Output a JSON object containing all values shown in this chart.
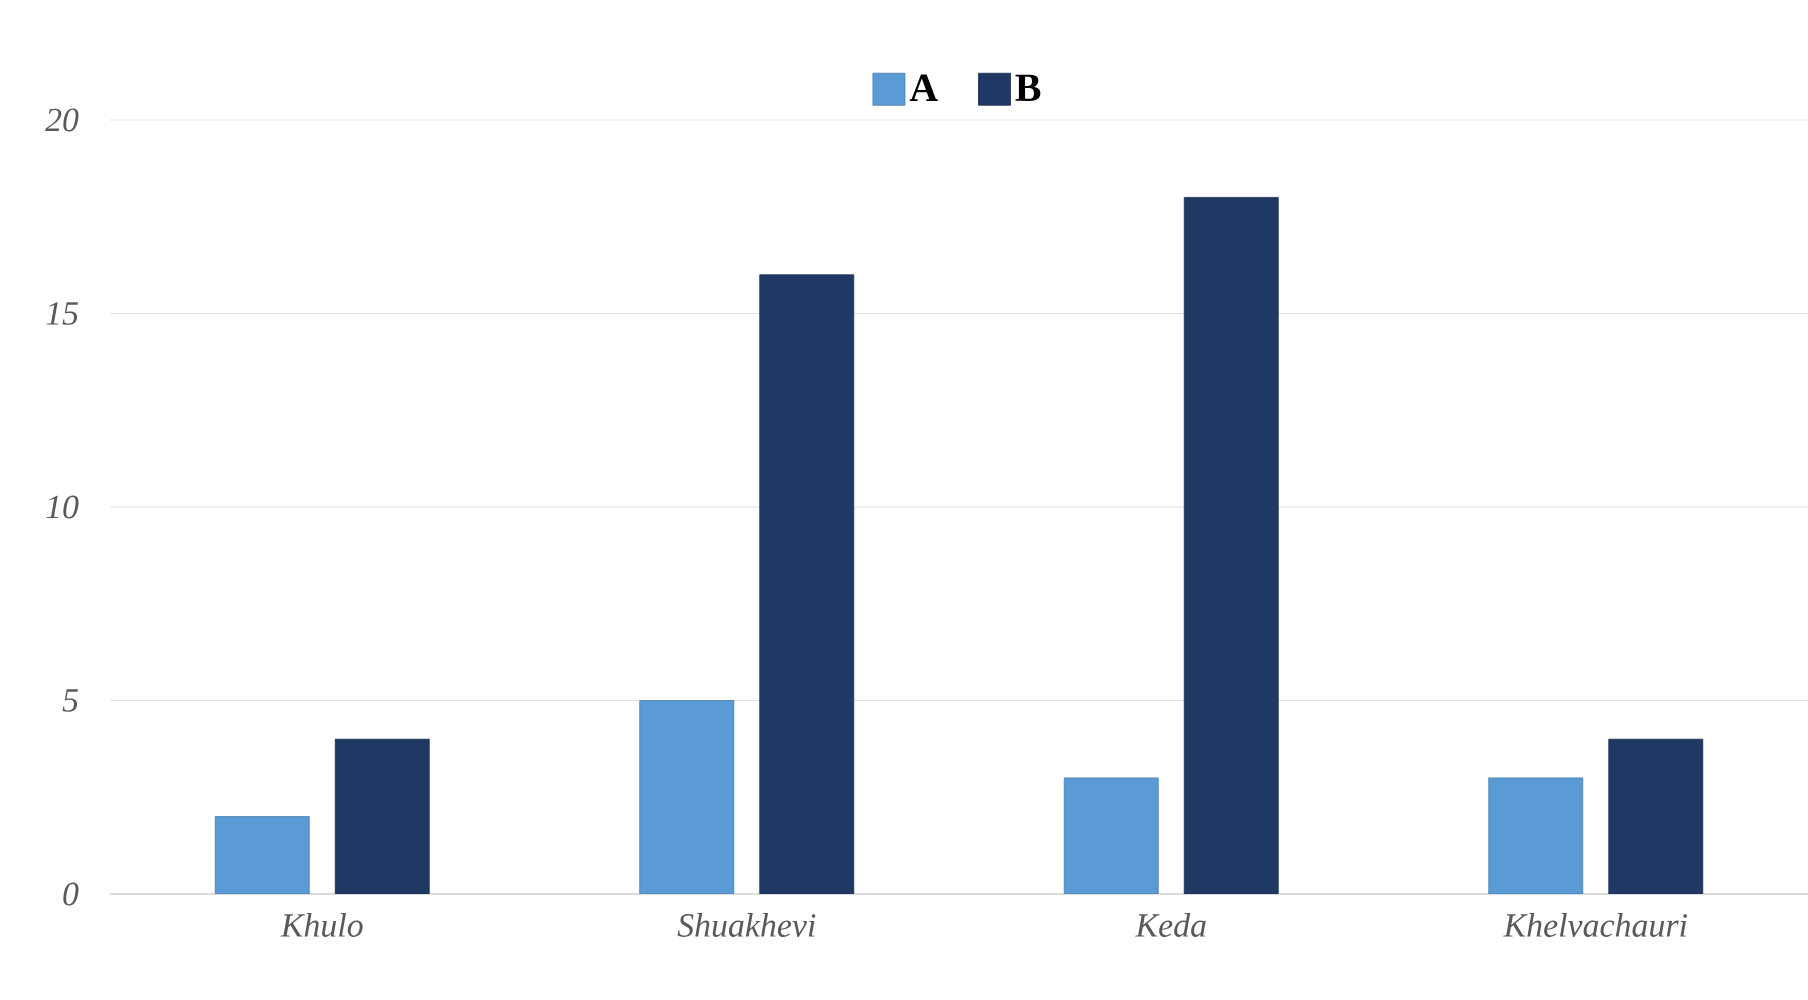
{
  "chart_data": {
    "type": "bar",
    "categories": [
      "Khulo",
      "Shuakhevi",
      "Keda",
      "Khelvachauri"
    ],
    "series": [
      {
        "name": "A",
        "color": "#5b9bd5",
        "values": [
          2,
          5,
          3,
          3
        ]
      },
      {
        "name": "B",
        "color": "#203864",
        "values": [
          4,
          16,
          18,
          4
        ]
      }
    ],
    "ylim": [
      0,
      20
    ],
    "yticks": [
      0,
      5,
      10,
      15,
      20
    ],
    "grid": "y",
    "legend": "top"
  }
}
